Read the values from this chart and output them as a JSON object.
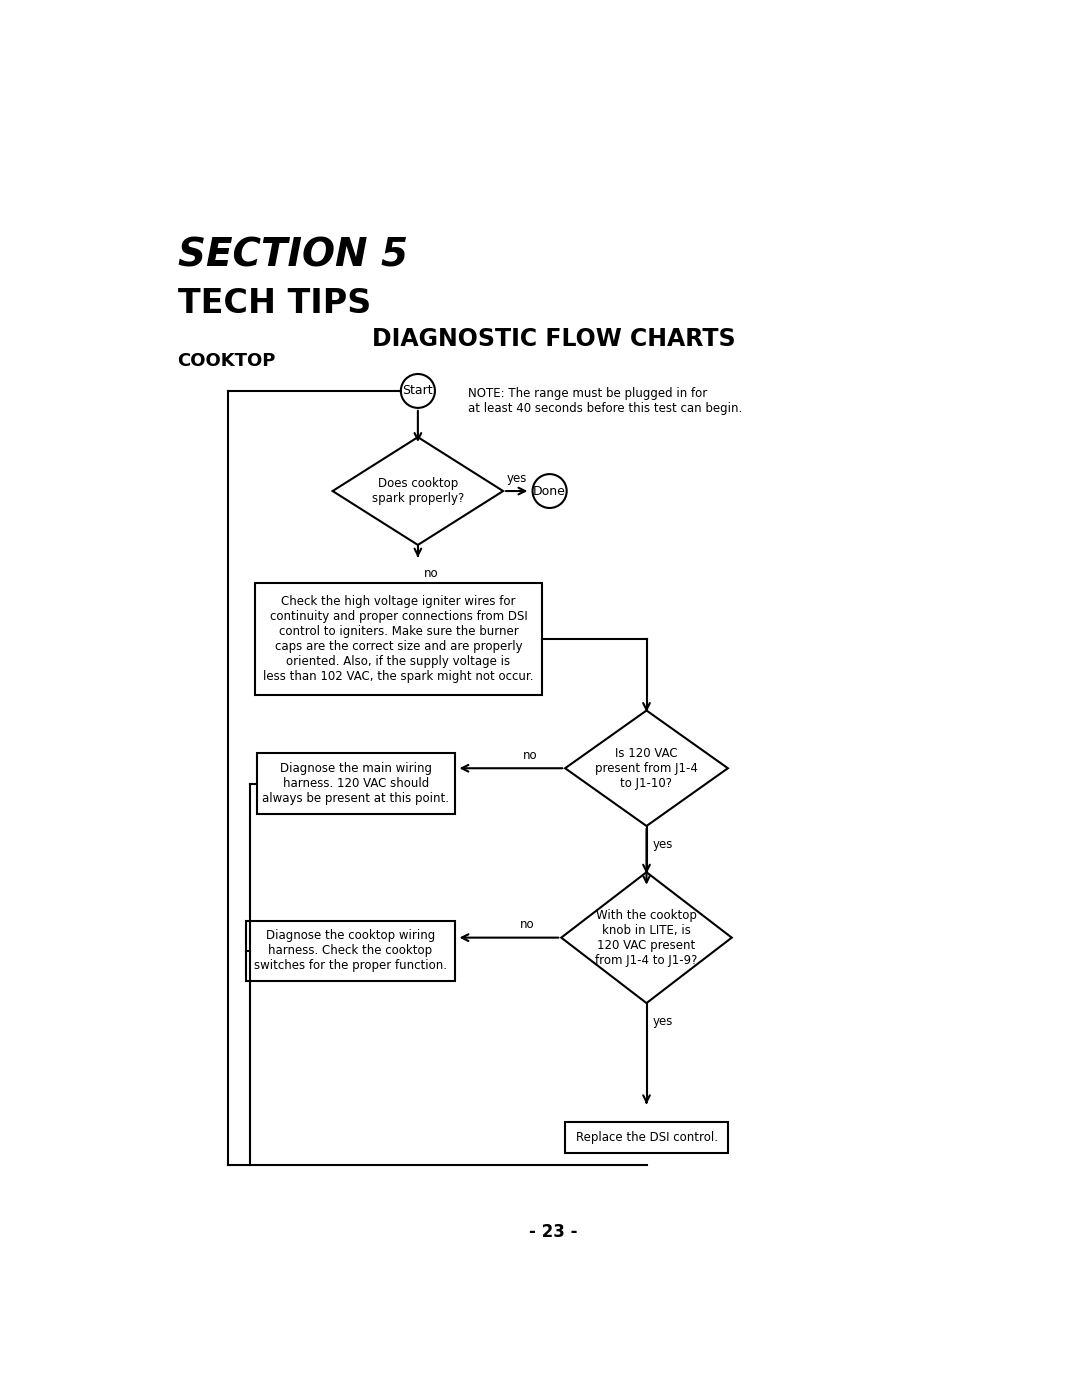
{
  "title_section": "SECTION 5",
  "title_tech": "TECH TIPS",
  "title_diag": "DIAGNOSTIC FLOW CHARTS",
  "title_cooktop": "COOKTOP",
  "note_text": "NOTE: The range must be plugged in for\nat least 40 seconds before this test can begin.",
  "page_number": "- 23 -",
  "bg_color": "#ffffff",
  "flow": {
    "start_label": "Start",
    "done_label": "Done",
    "diamond1_text": "Does cooktop\nspark properly?",
    "box1_text": "Check the high voltage igniter wires for\ncontinuity and proper connections from DSI\ncontrol to igniters. Make sure the burner\ncaps are the correct size and are properly\noriented. Also, if the supply voltage is\nless than 102 VAC, the spark might not occur.",
    "diamond2_text": "Is 120 VAC\npresent from J1-4\nto J1-10?",
    "box2_text": "Diagnose the main wiring\nharness. 120 VAC should\nalways be present at this point.",
    "diamond3_text": "With the cooktop\nknob in LITE, is\n120 VAC present\nfrom J1-4 to J1-9?",
    "box3_text": "Diagnose the cooktop wiring\nharness. Check the cooktop\nswitches for the proper function.",
    "box4_text": "Replace the DSI control."
  }
}
